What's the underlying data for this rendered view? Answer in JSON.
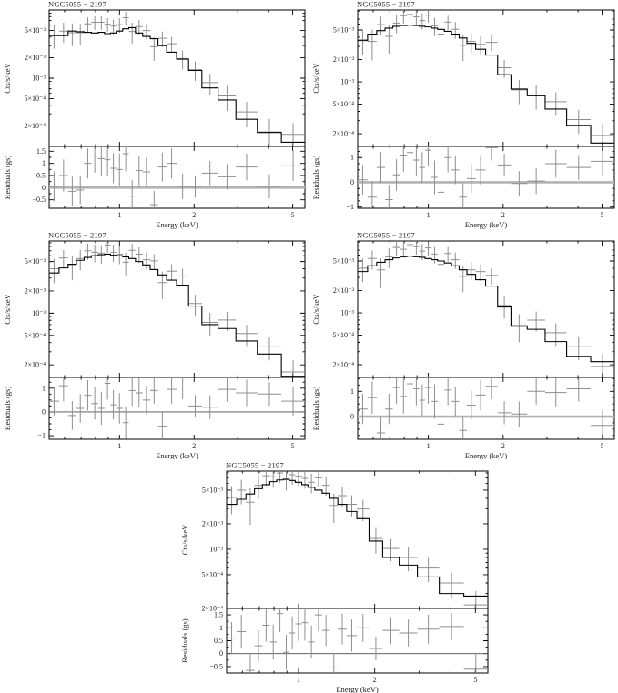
{
  "figure": {
    "background": "#ffffff",
    "panel_count": 5
  },
  "colors": {
    "frame": "#000000",
    "model_line": "#000000",
    "data_cross": "#8f8f8f",
    "zero_line_thick": "#b3b3b3",
    "zero_line_thin": "#4d4d4d",
    "text": "#1a1a1a"
  },
  "bin_edges": [
    0.52,
    0.57,
    0.62,
    0.67,
    0.72,
    0.77,
    0.82,
    0.87,
    0.92,
    0.97,
    1.03,
    1.09,
    1.16,
    1.24,
    1.33,
    1.43,
    1.55,
    1.7,
    1.9,
    2.15,
    2.5,
    2.95,
    3.6,
    4.5,
    5.6
  ],
  "chart_data": [
    {
      "id": "top-left",
      "type": "line",
      "subtype": "counts-spectrum-with-residuals",
      "title": "NGC5055 − 2197",
      "xlabel": "Energy (keV)",
      "ylabel": "Cts/s/keV",
      "ylabel_resid": "Residuals (gs)",
      "xlim": [
        0.52,
        5.6
      ],
      "ylim": [
        0.0001,
        0.01
      ],
      "rlim": [
        -0.85,
        1.7
      ],
      "xticks": {
        "labels": [
          "1",
          "2",
          "5"
        ],
        "values": [
          1,
          2,
          5
        ]
      },
      "xminor": [
        0.6,
        0.7,
        0.8,
        0.9,
        3,
        4
      ],
      "yticks": {
        "labels": [
          "5×10⁻³",
          "2×10⁻³",
          "10⁻³",
          "5×10⁻⁴",
          "2×10⁻⁴"
        ],
        "values": [
          0.005,
          0.002,
          0.001,
          0.0005,
          0.0002
        ]
      },
      "rticks": {
        "labels": [
          "1.5",
          "1",
          "0.5",
          "0",
          "−0.5"
        ],
        "values": [
          1.5,
          1,
          0.5,
          0,
          -0.5
        ]
      },
      "zero_line": "thick-gray",
      "model": [
        0.0042,
        0.0042,
        0.0049,
        0.0048,
        0.0047,
        0.0046,
        0.0047,
        0.0045,
        0.0046,
        0.0049,
        0.0053,
        0.0055,
        0.0046,
        0.0041,
        0.0038,
        0.003,
        0.0024,
        0.0019,
        0.0013,
        0.00072,
        0.00048,
        0.00025,
        0.00016,
        0.000115
      ],
      "counts": [
        0.0043,
        0.0049,
        0.00465,
        0.00465,
        0.00625,
        0.0066,
        0.0066,
        0.0062,
        0.0058,
        0.0061,
        0.0077,
        0.00485,
        0.0057,
        0.005,
        0.0029,
        0.00385,
        0.0032,
        0.00194,
        0.00133,
        0.00086,
        0.00055,
        0.00032,
        0.000163,
        0.00015
      ],
      "counts_err": [
        0.0016,
        0.0016,
        0.0017,
        0.0016,
        0.00155,
        0.0015,
        0.0015,
        0.0014,
        0.0014,
        0.0015,
        0.00165,
        0.00165,
        0.0014,
        0.00125,
        0.0011,
        0.001,
        0.00085,
        0.0006,
        0.00042,
        0.0003,
        0.00022,
        0.00013,
        9e-05,
        7e-05
      ],
      "resid": [
        0.05,
        0.5,
        -0.15,
        -0.1,
        1.0,
        1.3,
        1.2,
        1.15,
        0.8,
        0.75,
        1.4,
        -0.35,
        0.7,
        0.65,
        -0.7,
        0.85,
        1.0,
        0.05,
        0.05,
        0.6,
        0.45,
        0.85,
        0.05,
        0.9
      ],
      "resid_err": [
        0.62,
        0.66,
        0.6,
        0.58,
        0.62,
        0.68,
        0.7,
        0.66,
        0.62,
        0.66,
        0.72,
        0.66,
        0.62,
        0.6,
        0.56,
        0.6,
        0.62,
        0.52,
        0.46,
        0.5,
        0.52,
        0.55,
        0.5,
        0.62
      ]
    },
    {
      "id": "top-right",
      "type": "line",
      "subtype": "counts-spectrum-with-residuals",
      "title": "NGC5055 − 2197",
      "xlabel": "Energy (keV)",
      "ylabel": "Cts/s/keV",
      "ylabel_resid": "Residuals (gs)",
      "xlim": [
        0.52,
        5.6
      ],
      "ylim": [
        0.000135,
        0.0093
      ],
      "rlim": [
        -1.05,
        1.45
      ],
      "xticks": {
        "labels": [
          "1",
          "2",
          "5"
        ],
        "values": [
          1,
          2,
          5
        ]
      },
      "xminor": [
        0.6,
        0.7,
        0.8,
        0.9,
        3,
        4
      ],
      "yticks": {
        "labels": [
          "5×10⁻³",
          "2×10⁻³",
          "10⁻³",
          "5×10⁻⁴",
          "2×10⁻⁴"
        ],
        "values": [
          0.005,
          0.002,
          0.001,
          0.0005,
          0.0002
        ]
      },
      "rticks": {
        "labels": [
          "1",
          "0",
          "−1"
        ],
        "values": [
          1,
          0,
          -1
        ]
      },
      "zero_line": "thick-gray",
      "model": [
        0.0036,
        0.0044,
        0.0049,
        0.0053,
        0.0056,
        0.00575,
        0.0058,
        0.00575,
        0.0056,
        0.0055,
        0.0053,
        0.0051,
        0.0048,
        0.0044,
        0.0039,
        0.0033,
        0.00275,
        0.0023,
        0.00125,
        0.0008,
        0.00065,
        0.00043,
        0.00026,
        0.00015
      ],
      "counts": [
        0.0037,
        0.0035,
        0.0059,
        0.0041,
        0.0062,
        0.0078,
        0.0081,
        0.0075,
        0.0067,
        0.0079,
        0.0057,
        0.0044,
        0.0064,
        0.0051,
        0.0031,
        0.0035,
        0.0032,
        0.0034,
        0.00155,
        0.00078,
        0.00066,
        0.00054,
        0.00031,
        0.00019
      ],
      "counts_err": [
        0.0014,
        0.00155,
        0.00165,
        0.0017,
        0.0017,
        0.0017,
        0.0017,
        0.0017,
        0.00165,
        0.0016,
        0.00155,
        0.0015,
        0.0014,
        0.0013,
        0.0012,
        0.00105,
        0.0009,
        0.0008,
        0.00042,
        0.00028,
        0.00024,
        0.00018,
        0.00011,
        8e-05
      ],
      "resid": [
        0.1,
        -0.6,
        0.6,
        -0.7,
        0.3,
        1.1,
        1.2,
        0.9,
        0.6,
        1.3,
        0.2,
        -0.4,
        1.0,
        0.5,
        -0.6,
        0.15,
        0.5,
        1.4,
        0.7,
        -0.05,
        0.05,
        0.75,
        0.6,
        0.85
      ],
      "resid_err": [
        0.6,
        0.64,
        0.62,
        0.6,
        0.64,
        0.68,
        0.7,
        0.66,
        0.62,
        0.64,
        0.68,
        0.64,
        0.6,
        0.58,
        0.56,
        0.58,
        0.6,
        0.52,
        0.46,
        0.5,
        0.52,
        0.56,
        0.5,
        0.6
      ]
    },
    {
      "id": "mid-left",
      "type": "line",
      "subtype": "counts-spectrum-with-residuals",
      "title": "NGC5055 − 2197",
      "xlabel": "Energy (keV)",
      "ylabel": "Cts/s/keV",
      "ylabel_resid": "Residuals (gs)",
      "xlim": [
        0.52,
        5.6
      ],
      "ylim": [
        0.000135,
        0.0095
      ],
      "rlim": [
        -1.15,
        1.45
      ],
      "xticks": {
        "labels": [
          "1",
          "2",
          "5"
        ],
        "values": [
          1,
          2,
          5
        ]
      },
      "xminor": [
        0.6,
        0.7,
        0.8,
        0.9,
        3,
        4
      ],
      "yticks": {
        "labels": [
          "5×10⁻³",
          "2×10⁻³",
          "10⁻³",
          "5×10⁻⁴",
          "2×10⁻⁴"
        ],
        "values": [
          0.005,
          0.002,
          0.001,
          0.0005,
          0.0002
        ]
      },
      "rticks": {
        "labels": [
          "1",
          "0",
          "−1"
        ],
        "values": [
          1,
          0,
          -1
        ]
      },
      "zero_line": "thin",
      "model": [
        0.0035,
        0.0041,
        0.0046,
        0.0052,
        0.0057,
        0.006,
        0.0062,
        0.0063,
        0.0061,
        0.006,
        0.0058,
        0.0055,
        0.005,
        0.0045,
        0.0039,
        0.0033,
        0.0028,
        0.0024,
        0.00125,
        0.0007,
        0.00062,
        0.00042,
        0.00028,
        0.00014
      ],
      "counts": [
        0.004,
        0.0056,
        0.0044,
        0.0055,
        0.007,
        0.0067,
        0.0065,
        0.0084,
        0.0067,
        0.0063,
        0.0049,
        0.0071,
        0.0063,
        0.0053,
        0.0051,
        0.0026,
        0.0037,
        0.0032,
        0.00135,
        0.00075,
        0.00081,
        0.00053,
        0.00035,
        0.00016
      ],
      "counts_err": [
        0.00145,
        0.00155,
        0.0016,
        0.0017,
        0.00175,
        0.0018,
        0.0018,
        0.0018,
        0.00175,
        0.0017,
        0.00165,
        0.0016,
        0.0015,
        0.00135,
        0.0012,
        0.00105,
        0.00092,
        0.00082,
        0.00042,
        0.00026,
        0.00023,
        0.00017,
        0.00012,
        7e-05
      ],
      "resid": [
        0.45,
        1.1,
        -0.15,
        0.15,
        0.7,
        0.35,
        0.15,
        1.2,
        0.3,
        0.15,
        -0.45,
        0.9,
        0.8,
        0.5,
        0.9,
        -0.6,
        0.95,
        1.05,
        0.25,
        0.2,
        0.95,
        0.8,
        0.75,
        0.45
      ],
      "resid_err": [
        0.6,
        0.66,
        0.6,
        0.6,
        0.64,
        0.68,
        0.7,
        0.68,
        0.62,
        0.64,
        0.68,
        0.64,
        0.62,
        0.6,
        0.56,
        0.58,
        0.6,
        0.52,
        0.46,
        0.5,
        0.52,
        0.56,
        0.5,
        0.6
      ]
    },
    {
      "id": "mid-right",
      "type": "line",
      "subtype": "counts-spectrum-with-residuals",
      "title": "NGC5055 − 2197",
      "xlabel": "Energy (keV)",
      "ylabel": "Cts/s/keV",
      "ylabel_resid": "Residuals (gs)",
      "xlim": [
        0.52,
        5.6
      ],
      "ylim": [
        0.000135,
        0.0093
      ],
      "rlim": [
        -0.9,
        1.55
      ],
      "xticks": {
        "labels": [
          "1",
          "2",
          "5"
        ],
        "values": [
          1,
          2,
          5
        ]
      },
      "xminor": [
        0.6,
        0.7,
        0.8,
        0.9,
        3,
        4
      ],
      "yticks": {
        "labels": [
          "5×10⁻³",
          "2×10⁻³",
          "10⁻³",
          "5×10⁻⁴",
          "2×10⁻⁴"
        ],
        "values": [
          0.005,
          0.002,
          0.001,
          0.0005,
          0.0002
        ]
      },
      "rticks": {
        "labels": [
          "1",
          "0"
        ],
        "values": [
          1,
          0
        ]
      },
      "zero_line": "thick-gray",
      "model": [
        0.0036,
        0.0043,
        0.0048,
        0.0052,
        0.0055,
        0.0057,
        0.0058,
        0.0057,
        0.0056,
        0.0054,
        0.0052,
        0.005,
        0.0047,
        0.0043,
        0.0038,
        0.0033,
        0.0028,
        0.0023,
        0.0012,
        0.00066,
        0.0006,
        0.00041,
        0.00026,
        0.00022
      ],
      "counts": [
        0.004,
        0.0054,
        0.0038,
        0.0057,
        0.0076,
        0.0072,
        0.0083,
        0.0078,
        0.0068,
        0.0075,
        0.0062,
        0.0045,
        0.0063,
        0.0052,
        0.0031,
        0.0038,
        0.0036,
        0.0032,
        0.00126,
        0.00068,
        0.0008,
        0.00054,
        0.00035,
        0.00019
      ],
      "counts_err": [
        0.0014,
        0.00155,
        0.00165,
        0.0017,
        0.0017,
        0.0017,
        0.0017,
        0.0017,
        0.00165,
        0.0016,
        0.00155,
        0.0015,
        0.0014,
        0.0013,
        0.0012,
        0.00105,
        0.0009,
        0.0008,
        0.00042,
        0.00028,
        0.00024,
        0.00018,
        0.00012,
        9e-05
      ],
      "resid": [
        0.3,
        0.75,
        -0.65,
        0.3,
        1.15,
        0.8,
        1.3,
        1.1,
        0.65,
        1.15,
        0.6,
        -0.3,
        1.05,
        0.6,
        -0.55,
        0.45,
        0.85,
        1.2,
        0.15,
        0.1,
        1.0,
        0.95,
        1.1,
        -0.35
      ],
      "resid_err": [
        0.6,
        0.64,
        0.62,
        0.6,
        0.64,
        0.68,
        0.7,
        0.66,
        0.62,
        0.64,
        0.68,
        0.64,
        0.6,
        0.58,
        0.56,
        0.58,
        0.6,
        0.52,
        0.46,
        0.5,
        0.52,
        0.56,
        0.5,
        0.6
      ]
    },
    {
      "id": "bottom-center",
      "type": "line",
      "subtype": "counts-spectrum-with-residuals",
      "title": "NGC5055 − 2197",
      "xlabel": "Energy (keV)",
      "ylabel": "Cts/s/keV",
      "ylabel_resid": "Residuals (gs)",
      "xlim": [
        0.52,
        5.6
      ],
      "ylim": [
        0.0002,
        0.0084
      ],
      "rlim": [
        -0.75,
        1.75
      ],
      "xticks": {
        "labels": [
          "1",
          "2",
          "5"
        ],
        "values": [
          1,
          2,
          5
        ]
      },
      "xminor": [
        0.6,
        0.7,
        0.8,
        0.9,
        3,
        4
      ],
      "yticks": {
        "labels": [
          "5×10⁻³",
          "2×10⁻³",
          "10⁻³",
          "5×10⁻⁴",
          "2×10⁻⁴"
        ],
        "values": [
          0.005,
          0.002,
          0.001,
          0.0005,
          0.0002
        ]
      },
      "rticks": {
        "labels": [
          "1.5",
          "1",
          "0.5",
          "0",
          "−0.5"
        ],
        "values": [
          1.5,
          1,
          0.5,
          0,
          -0.5
        ]
      },
      "zero_line": "thin",
      "model": [
        0.0034,
        0.0039,
        0.0045,
        0.0052,
        0.0058,
        0.0063,
        0.0066,
        0.0067,
        0.0065,
        0.0062,
        0.0058,
        0.0054,
        0.005,
        0.0046,
        0.004,
        0.0034,
        0.0028,
        0.0023,
        0.00125,
        0.0008,
        0.00065,
        0.00047,
        0.0003,
        0.00028
      ],
      "counts": [
        0.0041,
        0.005,
        0.0036,
        0.0057,
        0.0074,
        0.0072,
        0.008,
        0.0068,
        0.0076,
        0.0073,
        0.0069,
        0.0062,
        0.007,
        0.0057,
        0.0033,
        0.0043,
        0.0034,
        0.003,
        0.00134,
        0.00102,
        0.0008,
        0.0006,
        0.0004,
        0.00022
      ],
      "counts_err": [
        0.0015,
        0.0016,
        0.00165,
        0.00175,
        0.0018,
        0.00185,
        0.00185,
        0.00185,
        0.0018,
        0.00175,
        0.0017,
        0.0016,
        0.0015,
        0.0014,
        0.00125,
        0.0011,
        0.00095,
        0.00085,
        0.00045,
        0.0003,
        0.00025,
        0.00019,
        0.00013,
        0.0001
      ],
      "resid": [
        0.6,
        0.85,
        -0.65,
        0.3,
        1.1,
        0.45,
        1.55,
        0.05,
        0.8,
        1.15,
        1.2,
        0.45,
        1.5,
        0.9,
        -0.55,
        0.95,
        0.7,
        1.0,
        0.2,
        0.9,
        0.8,
        0.95,
        1.05,
        -0.6
      ],
      "resid_err": [
        0.62,
        0.66,
        0.62,
        0.6,
        0.64,
        0.68,
        0.72,
        0.68,
        0.64,
        0.66,
        0.7,
        0.64,
        0.62,
        0.6,
        0.56,
        0.6,
        0.62,
        0.54,
        0.46,
        0.52,
        0.52,
        0.56,
        0.52,
        0.64
      ]
    }
  ]
}
